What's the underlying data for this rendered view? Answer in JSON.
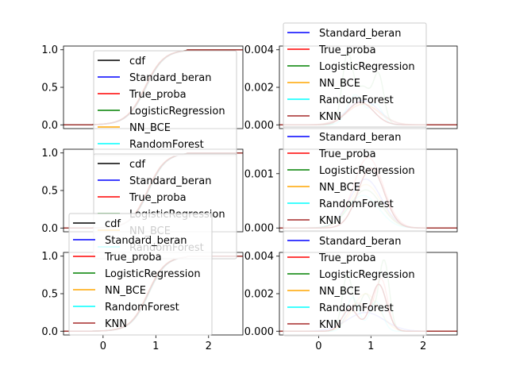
{
  "colors": {
    "cdf": "#000000",
    "Standard_beran": "#0000ff",
    "True_proba": "#ff0000",
    "LogisticRegression": "#008000",
    "NN_BCE": "#ffa500",
    "RandomForest": "#00ffff",
    "KNN": "#a52a2a"
  },
  "chart_data": [
    {
      "id": "cdf-top",
      "type": "line",
      "kind": "cdf",
      "xlim": [
        -0.75,
        2.65
      ],
      "ylim": [
        -0.05,
        1.05
      ],
      "xticks": [],
      "yticks": [
        0.0,
        0.5,
        1.0
      ],
      "ytick_labels": [
        "0.0",
        "0.5",
        "1.0"
      ],
      "center": 0.8,
      "width": 0.32,
      "legend": [
        "cdf",
        "Standard_beran",
        "True_proba",
        "LogisticRegression",
        "NN_BCE",
        "RandomForest"
      ]
    },
    {
      "id": "pdf-top",
      "type": "line",
      "kind": "pdf",
      "xlim": [
        -0.75,
        2.65
      ],
      "ylim": [
        -0.0002,
        0.0042
      ],
      "xticks": [],
      "yticks": [
        0.0,
        0.002,
        0.004
      ],
      "ytick_labels": [
        "0.000",
        "0.002",
        "0.004"
      ],
      "series": [
        {
          "name": "Standard_beran",
          "peaks": [
            [
              0.85,
              0.0013,
              0.3
            ]
          ]
        },
        {
          "name": "True_proba",
          "peaks": [
            [
              0.85,
              0.0011,
              0.3
            ]
          ]
        },
        {
          "name": "LogisticRegression",
          "peaks": [
            [
              0.55,
              0.0036,
              0.1
            ],
            [
              0.85,
              0.002,
              0.15
            ],
            [
              1.15,
              0.0025,
              0.1
            ]
          ]
        },
        {
          "name": "NN_BCE",
          "peaks": [
            [
              0.85,
              0.0011,
              0.32
            ]
          ]
        },
        {
          "name": "RandomForest",
          "peaks": [
            [
              0.7,
              0.0016,
              0.15
            ],
            [
              1.1,
              0.0011,
              0.12
            ]
          ]
        },
        {
          "name": "KNN",
          "peaks": [
            [
              0.8,
              0.0012,
              0.25
            ]
          ]
        }
      ],
      "legend": [
        "Standard_beran",
        "True_proba",
        "LogisticRegression",
        "NN_BCE",
        "RandomForest",
        "KNN"
      ]
    },
    {
      "id": "cdf-mid",
      "type": "line",
      "kind": "cdf",
      "xlim": [
        -0.75,
        2.65
      ],
      "ylim": [
        -0.05,
        1.05
      ],
      "xticks": [],
      "yticks": [
        0.0,
        0.5,
        1.0
      ],
      "ytick_labels": [
        "0.0",
        "0.5",
        "1.0"
      ],
      "center": 0.85,
      "width": 0.3,
      "legend": [
        "cdf",
        "Standard_beran",
        "True_proba",
        "LogisticRegression",
        "NN_BCE",
        "RandomForest"
      ]
    },
    {
      "id": "pdf-mid",
      "type": "line",
      "kind": "pdf",
      "xlim": [
        -0.75,
        2.65
      ],
      "ylim": [
        -7e-05,
        0.00145
      ],
      "xticks": [],
      "yticks": [
        0.0,
        0.001
      ],
      "ytick_labels": [
        "0.000",
        "0.001"
      ],
      "series": [
        {
          "name": "Standard_beran",
          "peaks": [
            [
              0.9,
              0.0009,
              0.3
            ]
          ]
        },
        {
          "name": "True_proba",
          "peaks": [
            [
              0.95,
              0.0013,
              0.28
            ]
          ]
        },
        {
          "name": "LogisticRegression",
          "peaks": [
            [
              0.9,
              0.0007,
              0.3
            ]
          ]
        },
        {
          "name": "NN_BCE",
          "peaks": [
            [
              0.9,
              0.0008,
              0.3
            ]
          ]
        },
        {
          "name": "RandomForest",
          "peaks": [
            [
              0.85,
              0.0006,
              0.3
            ]
          ]
        },
        {
          "name": "KNN",
          "peaks": [
            [
              1.0,
              0.0011,
              0.25
            ]
          ]
        }
      ],
      "legend": [
        "Standard_beran",
        "True_proba",
        "LogisticRegression",
        "NN_BCE",
        "RandomForest",
        "KNN"
      ]
    },
    {
      "id": "cdf-bottom",
      "type": "line",
      "kind": "cdf",
      "xlim": [
        -0.75,
        2.65
      ],
      "ylim": [
        -0.05,
        1.05
      ],
      "xticks": [
        0,
        1,
        2
      ],
      "xtick_labels": [
        "0",
        "1",
        "2"
      ],
      "yticks": [
        0.0,
        0.5,
        1.0
      ],
      "ytick_labels": [
        "0.0",
        "0.5",
        "1.0"
      ],
      "center": 0.85,
      "width": 0.3,
      "legend": [
        "cdf",
        "Standard_beran",
        "True_proba",
        "LogisticRegression",
        "NN_BCE",
        "RandomForest",
        "KNN"
      ]
    },
    {
      "id": "pdf-bottom",
      "type": "line",
      "kind": "pdf",
      "xlim": [
        -0.75,
        2.65
      ],
      "ylim": [
        -0.0002,
        0.0042
      ],
      "xticks": [
        0,
        1,
        2
      ],
      "xtick_labels": [
        "0",
        "1",
        "2"
      ],
      "yticks": [
        0.0,
        0.002,
        0.004
      ],
      "ytick_labels": [
        "0.000",
        "0.002",
        "0.004"
      ],
      "series": [
        {
          "name": "Standard_beran",
          "peaks": [
            [
              0.9,
              0.001,
              0.35
            ]
          ]
        },
        {
          "name": "True_proba",
          "peaks": [
            [
              1.2,
              0.0027,
              0.12
            ],
            [
              0.75,
              0.0015,
              0.2
            ]
          ]
        },
        {
          "name": "LogisticRegression",
          "peaks": [
            [
              0.55,
              0.003,
              0.1
            ],
            [
              1.25,
              0.0038,
              0.1
            ],
            [
              0.9,
              0.002,
              0.12
            ]
          ]
        },
        {
          "name": "NN_BCE",
          "peaks": [
            [
              0.9,
              0.002,
              0.25
            ]
          ]
        },
        {
          "name": "RandomForest",
          "peaks": [
            [
              0.65,
              0.0018,
              0.12
            ],
            [
              1.1,
              0.0016,
              0.12
            ]
          ]
        },
        {
          "name": "KNN",
          "peaks": [
            [
              1.15,
              0.0025,
              0.15
            ],
            [
              0.6,
              0.0012,
              0.15
            ]
          ]
        }
      ],
      "legend": [
        "Standard_beran",
        "True_proba",
        "LogisticRegression",
        "NN_BCE",
        "RandomForest",
        "KNN"
      ]
    }
  ]
}
